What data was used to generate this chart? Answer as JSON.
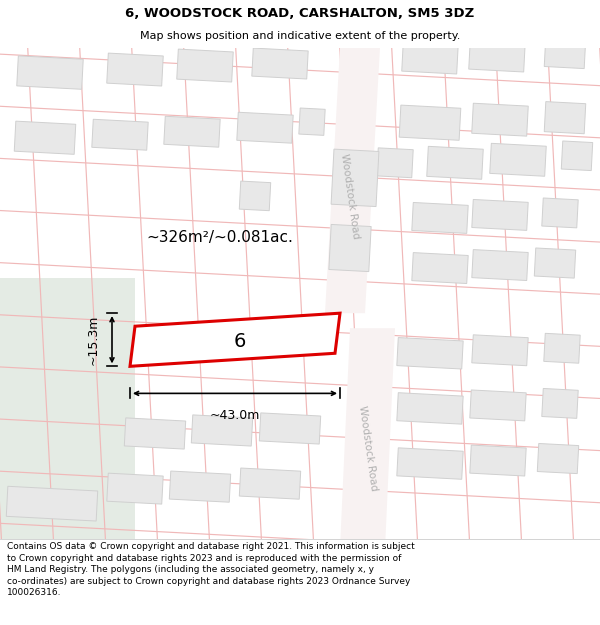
{
  "title_line1": "6, WOODSTOCK ROAD, CARSHALTON, SM5 3DZ",
  "title_line2": "Map shows position and indicative extent of the property.",
  "footer_text": "Contains OS data © Crown copyright and database right 2021. This information is subject to Crown copyright and database rights 2023 and is reproduced with the permission of HM Land Registry. The polygons (including the associated geometry, namely x, y co-ordinates) are subject to Crown copyright and database rights 2023 Ordnance Survey 100026316.",
  "map_bg": "#ffffff",
  "grid_color": "#f0b8b8",
  "building_fill": "#e8e8e8",
  "building_edge": "#d0d0d0",
  "green_fill": "#e4ebe4",
  "subject_fill": "#ffffff",
  "subject_edge": "#dd0000",
  "road_label": "Woodstock Road",
  "road_text_color": "#b0b0b0",
  "area_text": "~326m²/~0.081ac.",
  "width_text": "~43.0m",
  "height_text": "~15.3m",
  "house_number": "6",
  "footer_fs": 6.5,
  "title1_fs": 9.5,
  "title2_fs": 8.0
}
